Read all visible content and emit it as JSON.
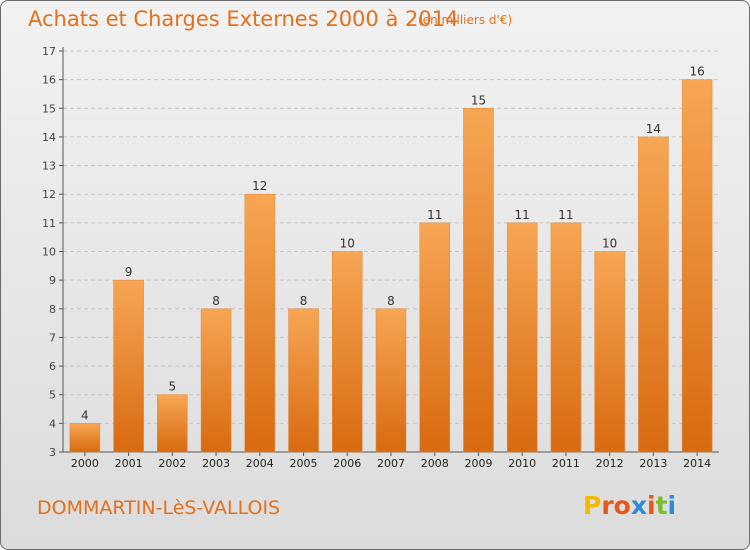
{
  "header": {
    "title": "Achats et Charges Externes 2000 à 2014",
    "unit": "(en milliers d'€)"
  },
  "footer": {
    "place": "DOMMARTIN-LèS-VALLOIS",
    "logo": "Proxiti"
  },
  "colors": {
    "bar_light": "#f7a654",
    "bar_dark": "#d86a10",
    "title": "#e2711d",
    "logo_letters": [
      "#f5b800",
      "#e8571c",
      "#e8571c",
      "#2e8bd6",
      "#e8571c",
      "#7cbf2b",
      "#2e8bd6"
    ]
  },
  "chart_data": {
    "type": "bar",
    "title": "Achats et Charges Externes 2000 à 2014",
    "subtitle": "(en milliers d'€)",
    "xlabel": "",
    "ylabel": "",
    "categories": [
      "2000",
      "2001",
      "2002",
      "2003",
      "2004",
      "2005",
      "2006",
      "2007",
      "2008",
      "2009",
      "2010",
      "2011",
      "2012",
      "2013",
      "2014"
    ],
    "values": [
      4,
      9,
      5,
      8,
      12,
      8,
      10,
      8,
      11,
      15,
      11,
      11,
      10,
      14,
      16
    ],
    "ylim": [
      3,
      17
    ],
    "yticks": [
      3,
      4,
      5,
      6,
      7,
      8,
      9,
      10,
      11,
      12,
      13,
      14,
      15,
      16,
      17
    ],
    "grid": true,
    "legend": "none"
  }
}
